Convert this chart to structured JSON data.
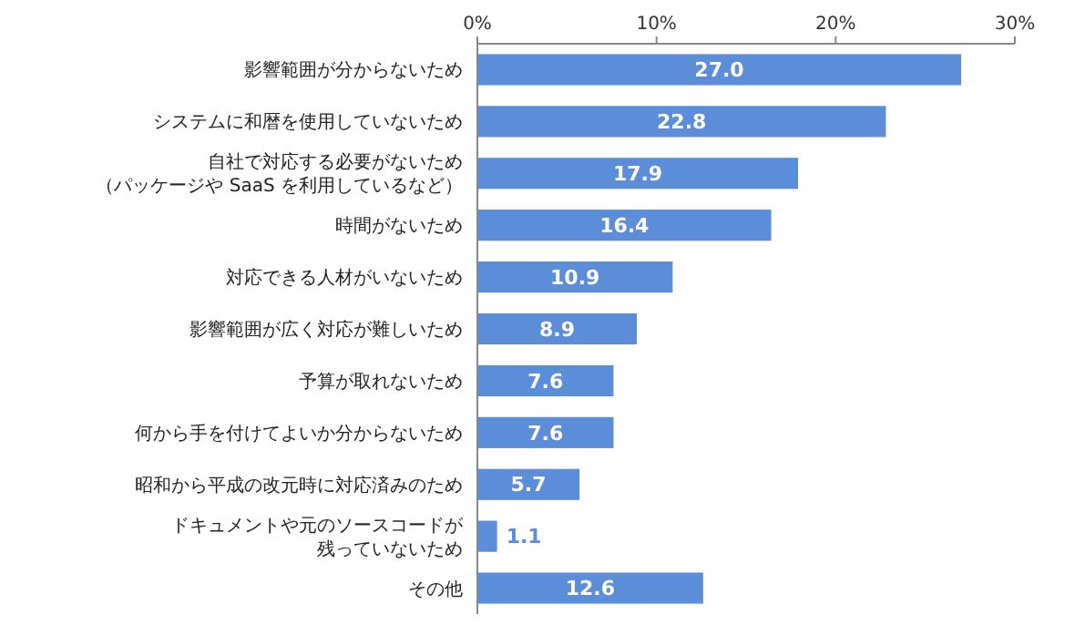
{
  "chart_data": {
    "type": "bar",
    "orientation": "horizontal",
    "categories": [
      "影響範囲が分からないため",
      "システムに和暦を使用していないため",
      "自社で対応する必要がないため（パッケージや SaaS を利用しているなど）",
      "時間がないため",
      "対応できる人材がいないため",
      "影響範囲が広く対応が難しいため",
      "予算が取れないため",
      "何から手を付けてよいか分からないため",
      "昭和から平成の改元時に対応済みのため",
      "ドキュメントや元のソースコードが残っていないため",
      "その他"
    ],
    "values": [
      27.0,
      22.8,
      17.9,
      16.4,
      10.9,
      8.9,
      7.6,
      7.6,
      5.7,
      1.1,
      12.6
    ],
    "value_labels": [
      "27.0",
      "22.8",
      "17.9",
      "16.4",
      "10.9",
      "8.9",
      "7.6",
      "7.6",
      "5.7",
      "1.1",
      "12.6"
    ],
    "color": "#5b8dd9",
    "xlim": [
      0,
      30
    ],
    "xticks": [
      {
        "value": 0,
        "label": "0%"
      },
      {
        "value": 10,
        "label": "10%"
      },
      {
        "value": 20,
        "label": "20%"
      },
      {
        "value": 30,
        "label": "30%"
      }
    ],
    "grid": false
  }
}
